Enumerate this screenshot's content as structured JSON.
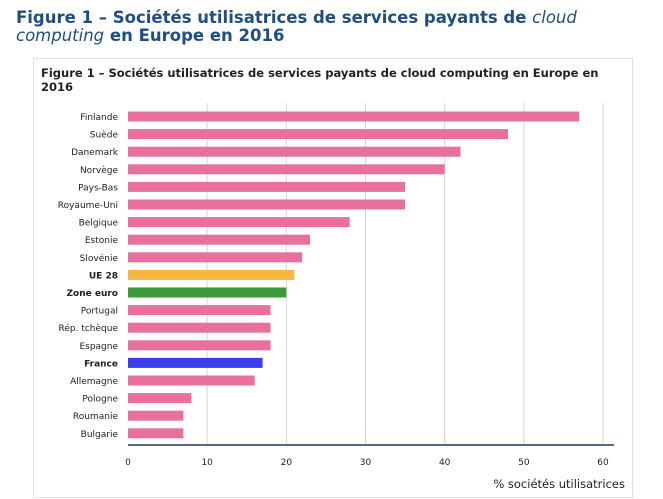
{
  "page": {
    "heading_prefix": "Figure 1 – Sociétés utilisatrices de services payants de ",
    "heading_italic": "cloud computing",
    "heading_suffix": " en Europe en 2016"
  },
  "colors": {
    "default": "#e8709c",
    "ue28": "#f5b642",
    "zone_euro": "#3a9a3a",
    "france": "#3a3ef0",
    "grid": "#d6d6d6",
    "axis": "#1f3a5a"
  },
  "chart_data": {
    "type": "bar",
    "orientation": "horizontal",
    "title": "Figure 1 – Sociétés utilisatrices de services payants de cloud computing en Europe en 2016",
    "xlabel": "% sociétés utilisatrices",
    "ylabel": "",
    "xlim": [
      0,
      60
    ],
    "xticks": [
      0,
      10,
      20,
      30,
      40,
      50,
      60
    ],
    "grid": true,
    "categories": [
      "Finlande",
      "Suède",
      "Danemark",
      "Norvège",
      "Pays-Bas",
      "Royaume-Uni",
      "Belgique",
      "Estonie",
      "Slovénie",
      "UE 28",
      "Zone euro",
      "Portugal",
      "Rép. tchèque",
      "Espagne",
      "France",
      "Allemagne",
      "Pologne",
      "Roumanie",
      "Bulgarie"
    ],
    "values": [
      57,
      48,
      42,
      40,
      35,
      35,
      28,
      23,
      22,
      21,
      20,
      18,
      18,
      18,
      17,
      16,
      8,
      7,
      7
    ],
    "bold_categories": [
      "UE 28",
      "Zone euro",
      "France"
    ],
    "bar_colors": {
      "UE 28": "#f5b642",
      "Zone euro": "#3a9a3a",
      "France": "#3a3ef0"
    }
  }
}
